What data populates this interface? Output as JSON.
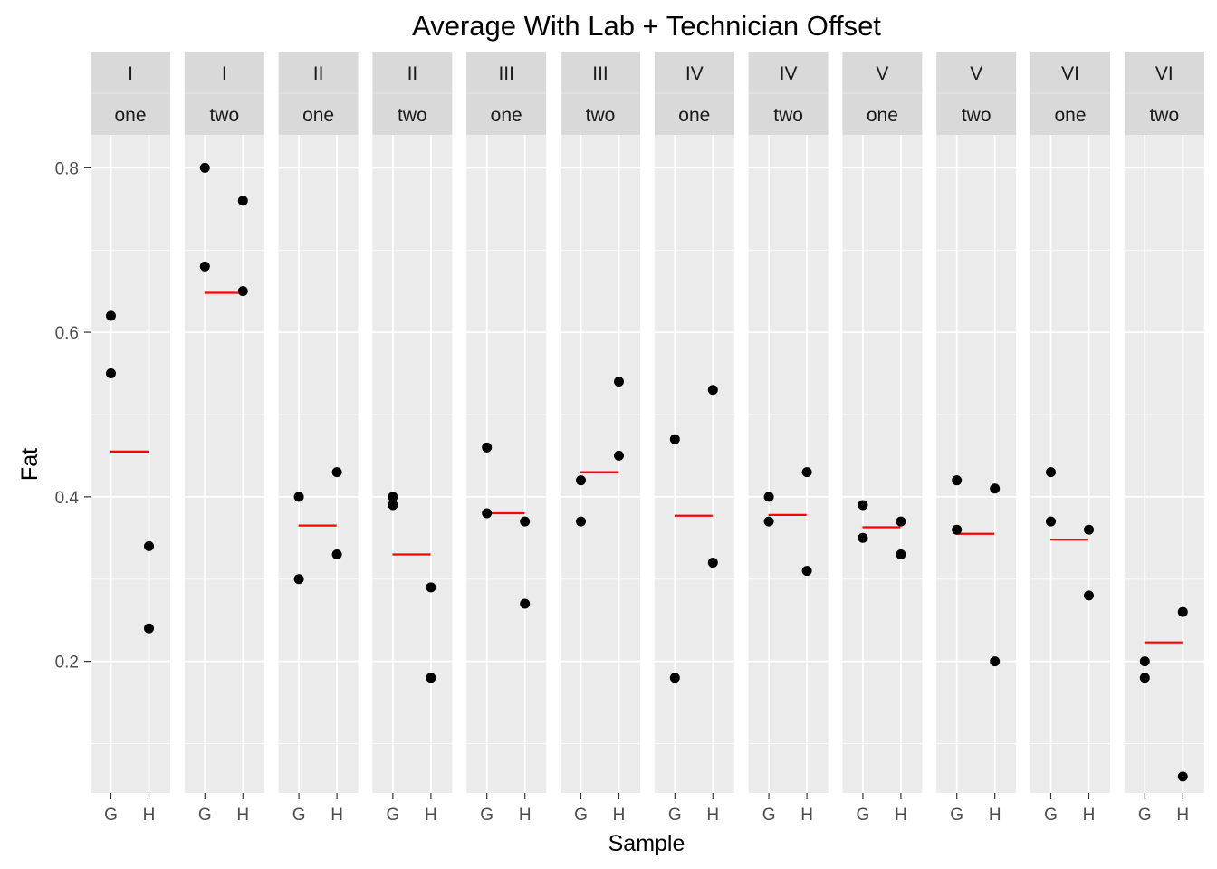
{
  "chart_data": {
    "type": "scatter",
    "title": "Average With Lab + Technician Offset",
    "xlabel": "Sample",
    "ylabel": "Fat",
    "x_categories": [
      "G",
      "H"
    ],
    "ylim": [
      0.04,
      0.84
    ],
    "y_ticks": [
      0.2,
      0.4,
      0.6,
      0.8
    ],
    "y_tick_labels": [
      "0.2",
      "0.4",
      "0.6",
      "0.8"
    ],
    "grid": true,
    "colors": {
      "panel_bg": "#ebebeb",
      "strip_bg": "#d9d9d9",
      "grid": "#ffffff",
      "points": "#000000",
      "average_line": "#ff0000"
    },
    "facets": [
      {
        "lab": "I",
        "technician": "one",
        "average": 0.455,
        "G": [
          0.62,
          0.55
        ],
        "H": [
          0.34,
          0.24
        ]
      },
      {
        "lab": "I",
        "technician": "two",
        "average": 0.648,
        "G": [
          0.8,
          0.68
        ],
        "H": [
          0.76,
          0.65
        ]
      },
      {
        "lab": "II",
        "technician": "one",
        "average": 0.365,
        "G": [
          0.4,
          0.3
        ],
        "H": [
          0.43,
          0.33
        ]
      },
      {
        "lab": "II",
        "technician": "two",
        "average": 0.33,
        "G": [
          0.4,
          0.39
        ],
        "H": [
          0.29,
          0.18
        ]
      },
      {
        "lab": "III",
        "technician": "one",
        "average": 0.38,
        "G": [
          0.46,
          0.38
        ],
        "H": [
          0.37,
          0.27
        ]
      },
      {
        "lab": "III",
        "technician": "two",
        "average": 0.43,
        "G": [
          0.42,
          0.37
        ],
        "H": [
          0.54,
          0.45
        ]
      },
      {
        "lab": "IV",
        "technician": "one",
        "average": 0.377,
        "G": [
          0.47,
          0.18
        ],
        "H": [
          0.53,
          0.32
        ]
      },
      {
        "lab": "IV",
        "technician": "two",
        "average": 0.378,
        "G": [
          0.4,
          0.37
        ],
        "H": [
          0.43,
          0.31
        ]
      },
      {
        "lab": "V",
        "technician": "one",
        "average": 0.363,
        "G": [
          0.39,
          0.35
        ],
        "H": [
          0.37,
          0.33
        ]
      },
      {
        "lab": "V",
        "technician": "two",
        "average": 0.355,
        "G": [
          0.42,
          0.36
        ],
        "H": [
          0.41,
          0.2
        ]
      },
      {
        "lab": "VI",
        "technician": "one",
        "average": 0.348,
        "G": [
          0.43,
          0.37
        ],
        "H": [
          0.36,
          0.28
        ]
      },
      {
        "lab": "VI",
        "technician": "two",
        "average": 0.223,
        "G": [
          0.2,
          0.18
        ],
        "H": [
          0.26,
          0.06
        ]
      }
    ]
  }
}
